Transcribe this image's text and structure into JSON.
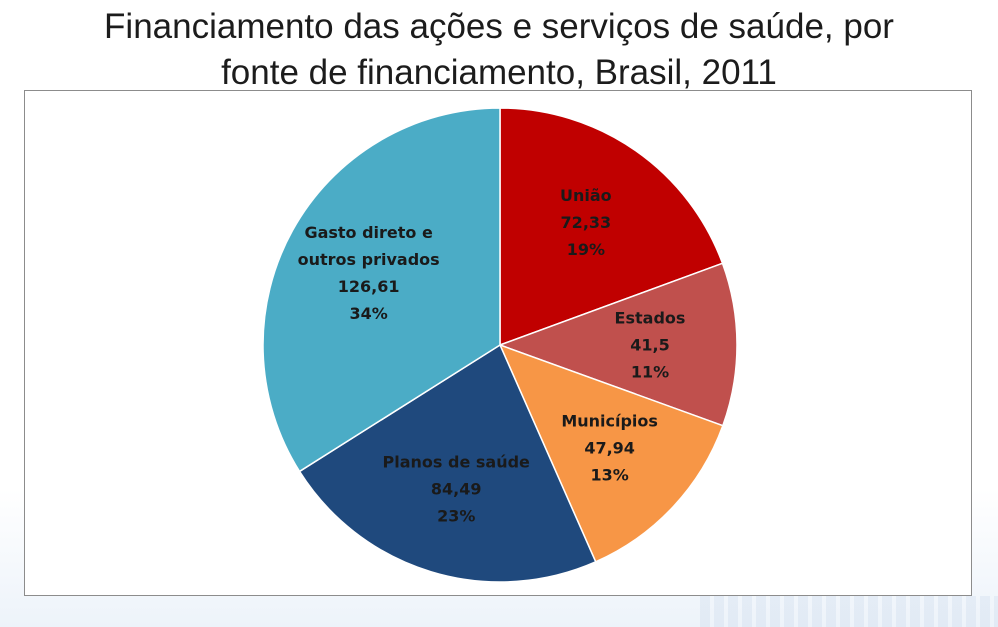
{
  "title": {
    "line1": "Financiamento das ações e serviços de saúde, por",
    "line2": "fonte de financiamento, Brasil, 2011"
  },
  "chart_data": {
    "type": "pie",
    "title": "Financiamento das ações e serviços de saúde, por fonte de financiamento, Brasil, 2011",
    "slices": [
      {
        "label_lines": [
          "União"
        ],
        "value": 72.33,
        "value_text": "72,33",
        "percent_text": "19%",
        "color": "#c00000"
      },
      {
        "label_lines": [
          "Estados"
        ],
        "value": 41.5,
        "value_text": "41,5",
        "percent_text": "11%",
        "color": "#c0504d"
      },
      {
        "label_lines": [
          "Municípios"
        ],
        "value": 47.94,
        "value_text": "47,94",
        "percent_text": "13%",
        "color": "#f79646"
      },
      {
        "label_lines": [
          "Planos de saúde"
        ],
        "value": 84.49,
        "value_text": "84,49",
        "percent_text": "23%",
        "color": "#1f497d"
      },
      {
        "label_lines": [
          "Gasto direto e",
          "outros privados"
        ],
        "value": 126.61,
        "value_text": "126,61",
        "percent_text": "34%",
        "color": "#4bacc6"
      }
    ],
    "start": "12 o'clock",
    "direction": "clockwise",
    "legend": "none"
  }
}
